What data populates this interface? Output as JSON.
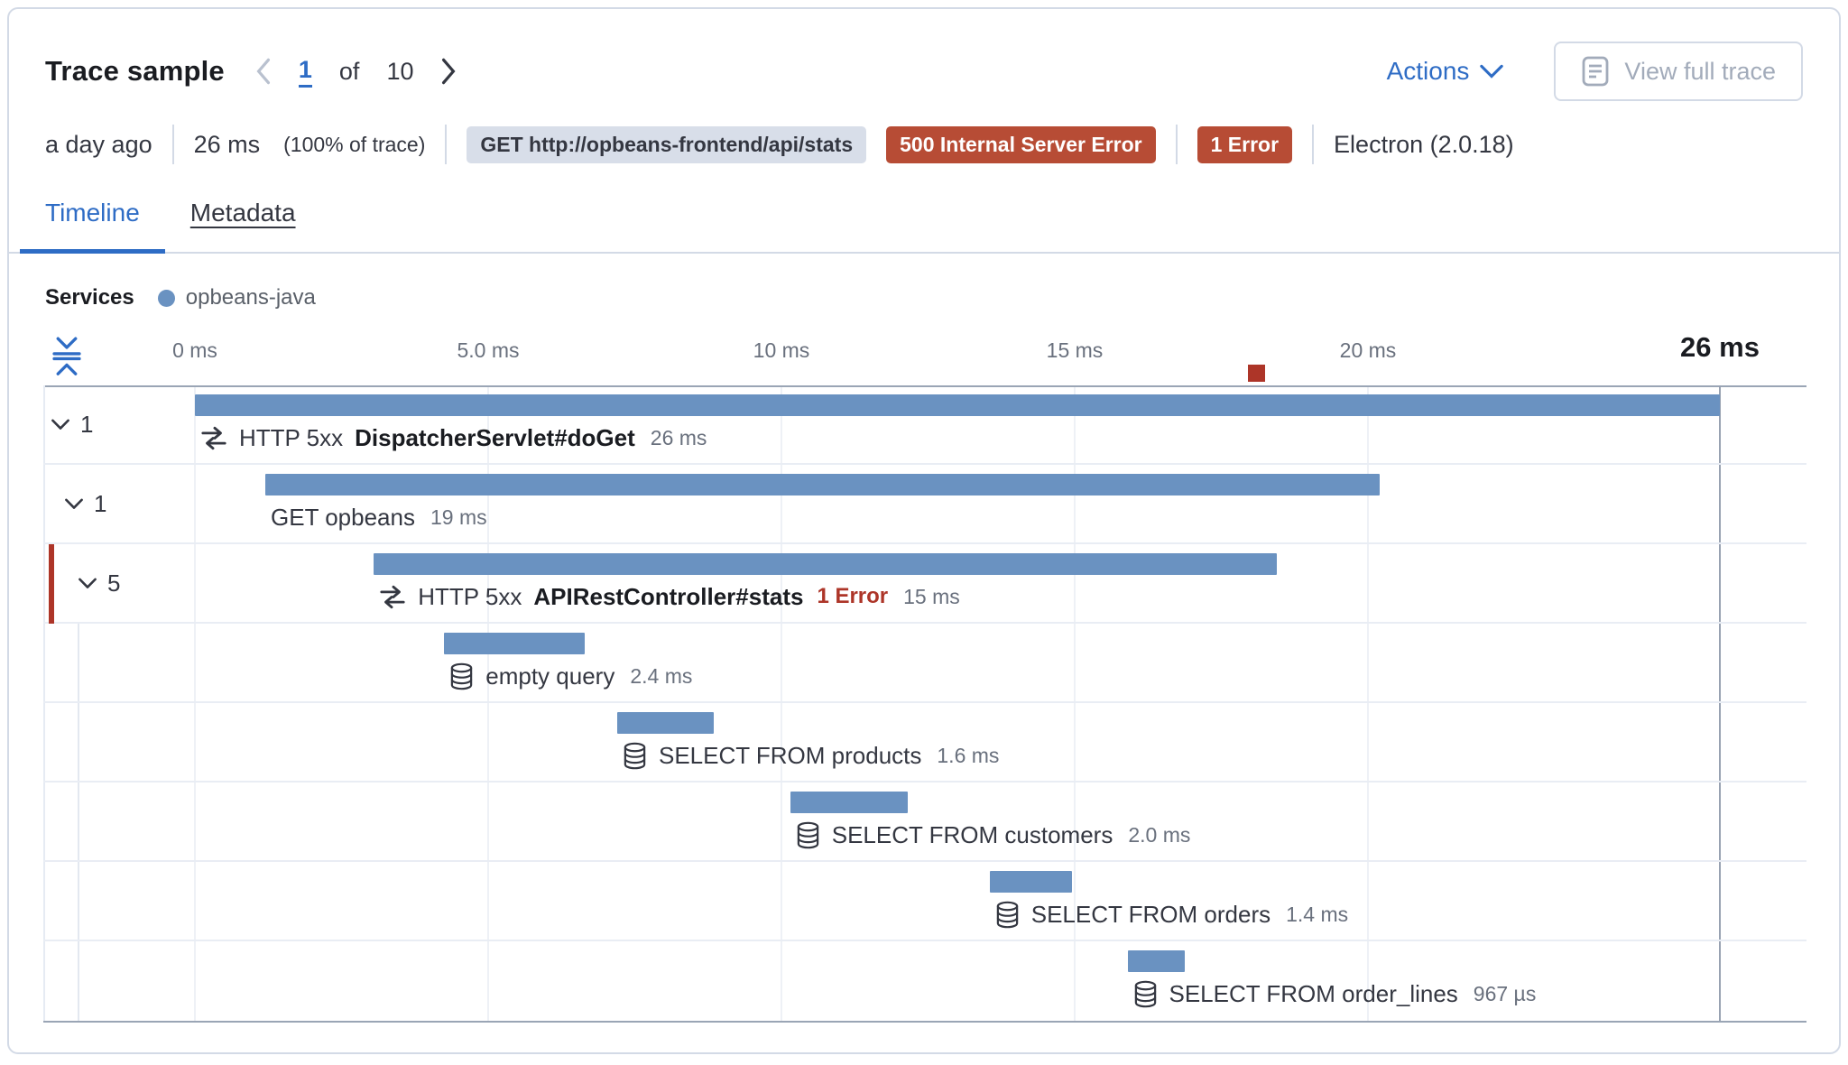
{
  "header": {
    "title": "Trace sample",
    "pager": {
      "current": "1",
      "of_label": "of",
      "total": "10"
    },
    "actions_label": "Actions",
    "view_full_trace_label": "View full trace"
  },
  "summary": {
    "age": "a day ago",
    "duration": "26 ms",
    "duration_pct": "(100% of trace)",
    "request_badge": "GET http://opbeans-frontend/api/stats",
    "status_badge": "500 Internal Server Error",
    "error_badge": "1 Error",
    "agent": "Electron (2.0.18)"
  },
  "tabs": [
    {
      "label": "Timeline",
      "active": true
    },
    {
      "label": "Metadata",
      "active": false
    }
  ],
  "legend": {
    "title": "Services",
    "items": [
      {
        "label": "opbeans-java",
        "color": "#6a92c1"
      }
    ]
  },
  "chart_data": {
    "type": "waterfall",
    "unit": "ms",
    "axis": {
      "ticks": [
        {
          "label": "0 ms",
          "ms": 0
        },
        {
          "label": "5.0 ms",
          "ms": 5
        },
        {
          "label": "10 ms",
          "ms": 10
        },
        {
          "label": "15 ms",
          "ms": 15
        },
        {
          "label": "20 ms",
          "ms": 20
        }
      ],
      "end_label": "26 ms",
      "total_ms": 26,
      "error_marker_ms": 18.1
    },
    "rows": [
      {
        "level": 0,
        "toggle": "1",
        "icon": "transaction",
        "prefix": "HTTP 5xx",
        "name": "DispatcherServlet#doGet",
        "bold": true,
        "duration": "26 ms",
        "start_ms": 0,
        "duration_ms": 26.0,
        "error_accent": false
      },
      {
        "level": 1,
        "toggle": "1",
        "icon": null,
        "prefix": "",
        "name": "GET opbeans",
        "bold": false,
        "duration": "19 ms",
        "start_ms": 1.2,
        "duration_ms": 19.0,
        "error_accent": false
      },
      {
        "level": 2,
        "toggle": "5",
        "icon": "transaction",
        "prefix": "HTTP 5xx",
        "name": "APIRestController#stats",
        "bold": true,
        "error_label": "1 Error",
        "duration": "15 ms",
        "start_ms": 3.05,
        "duration_ms": 15.4,
        "error_accent": true
      },
      {
        "level": 3,
        "toggle": null,
        "icon": "database",
        "prefix": "",
        "name": "empty query",
        "bold": false,
        "duration": "2.4 ms",
        "start_ms": 4.25,
        "duration_ms": 2.4,
        "error_accent": false
      },
      {
        "level": 3,
        "toggle": null,
        "icon": "database",
        "prefix": "",
        "name": "SELECT FROM products",
        "bold": false,
        "duration": "1.6 ms",
        "start_ms": 7.2,
        "duration_ms": 1.65,
        "error_accent": false
      },
      {
        "level": 3,
        "toggle": null,
        "icon": "database",
        "prefix": "",
        "name": "SELECT FROM customers",
        "bold": false,
        "duration": "2.0 ms",
        "start_ms": 10.15,
        "duration_ms": 2.0,
        "error_accent": false
      },
      {
        "level": 3,
        "toggle": null,
        "icon": "database",
        "prefix": "",
        "name": "SELECT FROM orders",
        "bold": false,
        "duration": "1.4 ms",
        "start_ms": 13.55,
        "duration_ms": 1.4,
        "error_accent": false
      },
      {
        "level": 3,
        "toggle": null,
        "icon": "database",
        "prefix": "",
        "name": "SELECT FROM order_lines",
        "bold": false,
        "duration": "967 µs",
        "start_ms": 15.9,
        "duration_ms": 0.97,
        "error_accent": false
      }
    ]
  },
  "colors": {
    "accent_blue": "#2e6cc5",
    "bar_blue": "#6a92c1",
    "error_red": "#ad3528",
    "badge_red_bg": "#b74c35",
    "badge_gray_bg": "#d8dee9"
  }
}
